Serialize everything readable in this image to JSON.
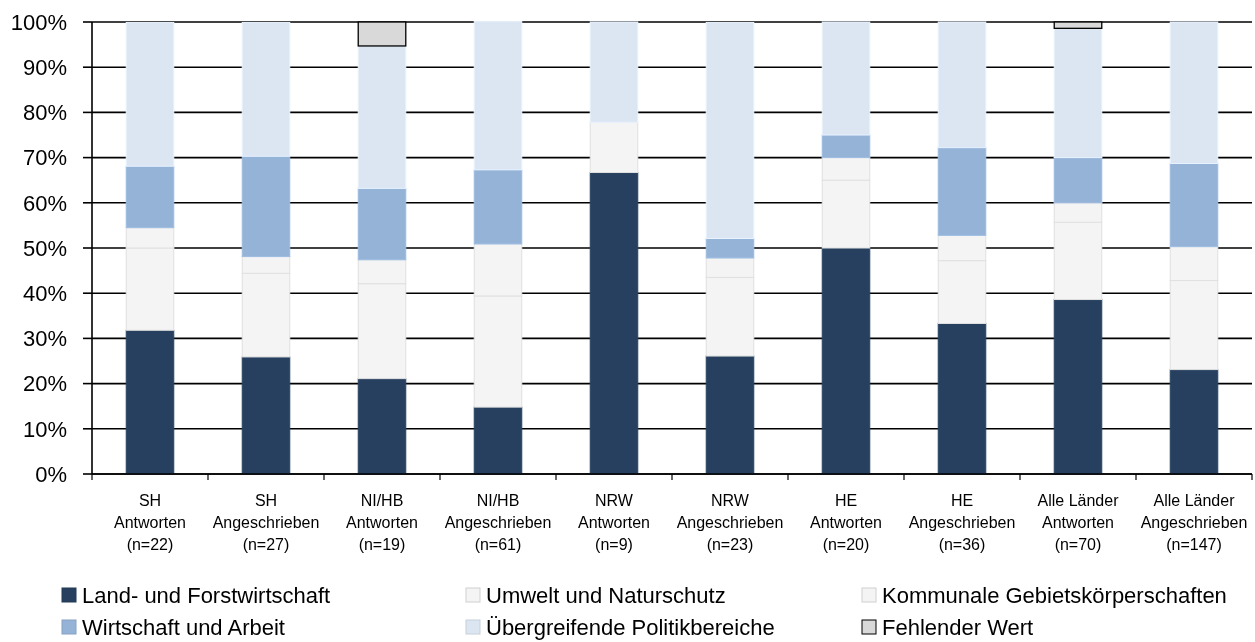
{
  "chart_data": {
    "type": "bar",
    "stacked": true,
    "categories": [
      "SH\nAntworten\n(n=22)",
      "SH\nAngeschrieben\n(n=27)",
      "NI/HB\nAntworten\n(n=19)",
      "NI/HB\nAngeschrieben\n(n=61)",
      "NRW\nAntworten\n(n=9)",
      "NRW\nAngeschrieben\n(n=23)",
      "HE\nAntworten\n(n=20)",
      "HE\nAngeschrieben\n(n=36)",
      "Alle Länder\nAntworten\n(n=70)",
      "Alle Länder\nAngeschrieben\n(n=147)"
    ],
    "series": [
      {
        "name": "Land- und Forstwirtschaft",
        "color": "#27405f",
        "values": [
          31.8,
          25.9,
          21.1,
          14.8,
          66.7,
          26.1,
          50,
          33.3,
          38.6,
          23.1
        ]
      },
      {
        "name": "Umwelt und Naturschutz",
        "color": "#f4f4f4",
        "values": [
          18.2,
          18.5,
          21.0,
          24.6,
          11.1,
          17.4,
          15,
          13.9,
          17.1,
          19.7
        ]
      },
      {
        "name": "Kommunale Gebietskörperschaften",
        "color": "#f4f4f4",
        "values": [
          4.5,
          3.7,
          5.3,
          11.5,
          0,
          4.3,
          5,
          5.6,
          4.3,
          7.5
        ]
      },
      {
        "name": "Wirtschaft und Arbeit",
        "color": "#95b3d7",
        "values": [
          13.6,
          22.2,
          15.8,
          16.4,
          0,
          4.3,
          5,
          19.4,
          10,
          18.4
        ]
      },
      {
        "name": "Übergreifende Politikbereiche",
        "color": "#dce6f2",
        "values": [
          31.8,
          29.6,
          31.5,
          32.8,
          22.2,
          47.8,
          25,
          27.8,
          28.6,
          31.3
        ]
      },
      {
        "name": "Fehlender Wert",
        "color": "#d9d9d9",
        "values": [
          0,
          0,
          5.3,
          0,
          0,
          0,
          0,
          0,
          1.4,
          0
        ]
      }
    ],
    "ylim": [
      0,
      100
    ],
    "yticks": [
      {
        "value": 0,
        "label": "0%"
      },
      {
        "value": 10,
        "label": "10%"
      },
      {
        "value": 20,
        "label": "20%"
      },
      {
        "value": 30,
        "label": "30%"
      },
      {
        "value": 40,
        "label": "40%"
      },
      {
        "value": 50,
        "label": "50%"
      },
      {
        "value": 60,
        "label": "60%"
      },
      {
        "value": 70,
        "label": "70%"
      },
      {
        "value": 80,
        "label": "80%"
      },
      {
        "value": 90,
        "label": "90%"
      },
      {
        "value": 100,
        "label": "100%"
      }
    ],
    "grid": "y",
    "legend": "bottom"
  }
}
